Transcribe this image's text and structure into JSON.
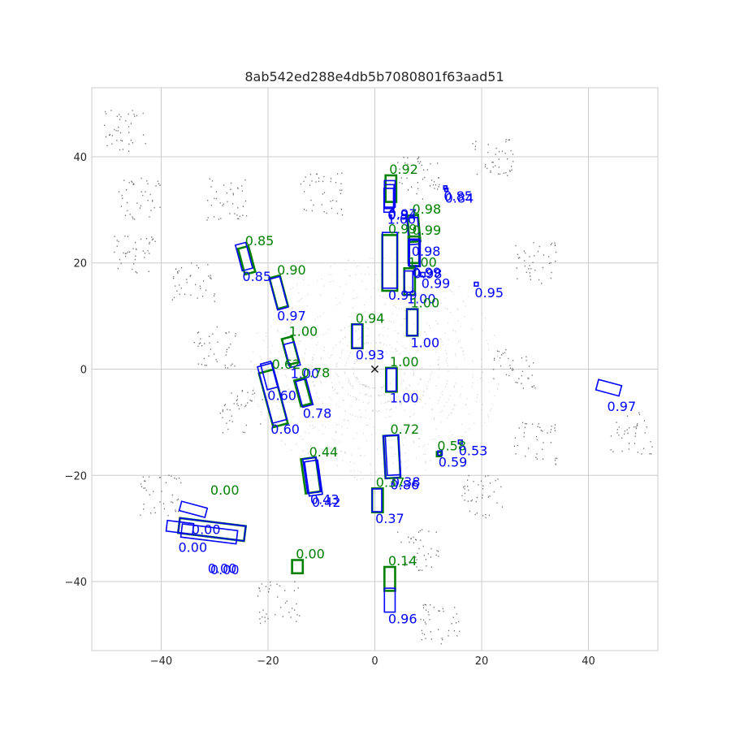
{
  "chart_data": {
    "type": "scatter",
    "title": "8ab542ed288e4db5b7080801f63aad51",
    "xlim": [
      -53,
      53
    ],
    "ylim": [
      -53,
      53
    ],
    "xticks": [
      -40,
      -20,
      0,
      20,
      40
    ],
    "yticks": [
      -40,
      -20,
      0,
      20,
      40
    ],
    "grid": true,
    "ego_marker": {
      "x": 0,
      "y": 0,
      "symbol": "×"
    },
    "colors": {
      "gt": "#008000",
      "pred": "#0000ff",
      "points": "#808080",
      "grid": "#cccccc"
    },
    "boxes": [
      {
        "kind": "gt",
        "cx": 3,
        "cy": 34,
        "w": 2,
        "l": 5,
        "yaw": 0,
        "score": "0.92"
      },
      {
        "kind": "pred",
        "cx": 2.8,
        "cy": 33,
        "w": 2,
        "l": 5,
        "yaw": 0,
        "score": "0.97"
      },
      {
        "kind": "pred",
        "cx": 2.7,
        "cy": 32.5,
        "w": 1.8,
        "l": 4.5,
        "yaw": 0,
        "score": "0.94"
      },
      {
        "kind": "pred",
        "cx": 2.6,
        "cy": 31.8,
        "w": 1.8,
        "l": 4.5,
        "yaw": 0,
        "score": "1.00"
      },
      {
        "kind": "pred",
        "cx": 13.2,
        "cy": 34.2,
        "w": 0.6,
        "l": 0.6,
        "yaw": 0,
        "score": "0.85"
      },
      {
        "kind": "pred",
        "cx": 13.4,
        "cy": 33.8,
        "w": 0.6,
        "l": 0.6,
        "yaw": 0,
        "score": "0.84"
      },
      {
        "kind": "gt",
        "cx": 7.3,
        "cy": 26.5,
        "w": 2,
        "l": 5,
        "yaw": 5,
        "score": "0.98"
      },
      {
        "kind": "pred",
        "cx": 7.2,
        "cy": 26,
        "w": 2,
        "l": 5,
        "yaw": 5,
        "score": "0.98"
      },
      {
        "kind": "gt",
        "cx": 7.3,
        "cy": 22.5,
        "w": 2,
        "l": 5,
        "yaw": 0,
        "score": "0.99"
      },
      {
        "kind": "pred",
        "cx": 7.3,
        "cy": 22,
        "w": 2,
        "l": 5,
        "yaw": 0,
        "score": "0.99"
      },
      {
        "kind": "pred",
        "cx": 7.5,
        "cy": 21.8,
        "w": 2,
        "l": 5,
        "yaw": 0,
        "score": "0.98"
      },
      {
        "kind": "gt",
        "cx": 2.8,
        "cy": 20,
        "w": 2.8,
        "l": 10.5,
        "yaw": 0,
        "score": "0.99"
      },
      {
        "kind": "pred",
        "cx": 2.8,
        "cy": 20.5,
        "w": 2.8,
        "l": 10.5,
        "yaw": 0,
        "score": "0.99"
      },
      {
        "kind": "gt",
        "cx": 6.5,
        "cy": 16.5,
        "w": 2,
        "l": 5,
        "yaw": 0,
        "score": "1.00"
      },
      {
        "kind": "pred",
        "cx": 6.3,
        "cy": 16.5,
        "w": 1.6,
        "l": 4,
        "yaw": 0,
        "score": "1.00"
      },
      {
        "kind": "pred",
        "cx": 9,
        "cy": 17.8,
        "w": 0.8,
        "l": 0.8,
        "yaw": 0,
        "score": "0.99"
      },
      {
        "kind": "pred",
        "cx": 19,
        "cy": 16,
        "w": 0.7,
        "l": 0.7,
        "yaw": 0,
        "score": "0.95"
      },
      {
        "kind": "gt",
        "cx": 7,
        "cy": 8.8,
        "w": 2,
        "l": 5,
        "yaw": 0,
        "score": "1.00"
      },
      {
        "kind": "pred",
        "cx": 7,
        "cy": 8.8,
        "w": 2,
        "l": 5,
        "yaw": 0,
        "score": "1.00"
      },
      {
        "kind": "gt",
        "cx": 3.1,
        "cy": -2,
        "w": 2,
        "l": 4.5,
        "yaw": 0,
        "score": "1.00"
      },
      {
        "kind": "pred",
        "cx": 3.1,
        "cy": -2,
        "w": 1.8,
        "l": 4.3,
        "yaw": 0,
        "score": "1.00"
      },
      {
        "kind": "gt",
        "cx": -3.3,
        "cy": 6.2,
        "w": 2,
        "l": 4.5,
        "yaw": 0,
        "score": "0.94"
      },
      {
        "kind": "pred",
        "cx": -3.3,
        "cy": 6.2,
        "w": 1.8,
        "l": 4.5,
        "yaw": 0,
        "score": "0.93"
      },
      {
        "kind": "gt",
        "cx": -24,
        "cy": 20.5,
        "w": 2,
        "l": 5,
        "yaw": 15,
        "score": "0.85"
      },
      {
        "kind": "pred",
        "cx": -24.5,
        "cy": 21.2,
        "w": 2,
        "l": 5,
        "yaw": 15,
        "score": "0.85"
      },
      {
        "kind": "gt",
        "cx": -18,
        "cy": 14.5,
        "w": 2,
        "l": 6,
        "yaw": 15,
        "score": "0.90"
      },
      {
        "kind": "pred",
        "cx": -18,
        "cy": 14.3,
        "w": 2,
        "l": 6,
        "yaw": 15,
        "score": "0.97"
      },
      {
        "kind": "gt",
        "cx": -15.8,
        "cy": 3.5,
        "w": 2,
        "l": 5,
        "yaw": 15,
        "score": "1.00"
      },
      {
        "kind": "pred",
        "cx": -15.5,
        "cy": 2.7,
        "w": 2,
        "l": 4.5,
        "yaw": 15,
        "score": "1.00"
      },
      {
        "kind": "gt",
        "cx": -19,
        "cy": -5.5,
        "w": 2.8,
        "l": 10.5,
        "yaw": 15,
        "score": "0.62"
      },
      {
        "kind": "pred",
        "cx": -19.2,
        "cy": -4.5,
        "w": 2.8,
        "l": 11,
        "yaw": 15,
        "score": "0.60"
      },
      {
        "kind": "pred",
        "cx": -19.8,
        "cy": -1.2,
        "w": 2,
        "l": 5,
        "yaw": 15,
        "score": "0.60"
      },
      {
        "kind": "gt",
        "cx": -13.5,
        "cy": -4.3,
        "w": 2,
        "l": 5,
        "yaw": 15,
        "score": "0.78"
      },
      {
        "kind": "pred",
        "cx": -13.2,
        "cy": -4.5,
        "w": 2,
        "l": 5,
        "yaw": 15,
        "score": "0.78"
      },
      {
        "kind": "gt",
        "cx": 3.2,
        "cy": -16.5,
        "w": 2.8,
        "l": 8,
        "yaw": 3,
        "score": "0.72"
      },
      {
        "kind": "pred",
        "cx": 3.2,
        "cy": -16.5,
        "w": 2.8,
        "l": 8,
        "yaw": 3,
        "score": "0.86"
      },
      {
        "kind": "pred",
        "cx": 3.4,
        "cy": -16.2,
        "w": 2.5,
        "l": 7.5,
        "yaw": 3,
        "score": "0.38"
      },
      {
        "kind": "gt",
        "cx": 12,
        "cy": -16,
        "w": 0.8,
        "l": 0.8,
        "yaw": 0,
        "score": "0.58"
      },
      {
        "kind": "pred",
        "cx": 12.2,
        "cy": -15.8,
        "w": 0.8,
        "l": 0.8,
        "yaw": 0,
        "score": "0.59"
      },
      {
        "kind": "pred",
        "cx": 16,
        "cy": -13.7,
        "w": 0.7,
        "l": 0.7,
        "yaw": 0,
        "score": "0.53"
      },
      {
        "kind": "pred",
        "cx": 43.8,
        "cy": -3.5,
        "w": 2,
        "l": 4.5,
        "yaw": 75,
        "score": "0.97"
      },
      {
        "kind": "gt",
        "cx": -12,
        "cy": -20,
        "w": 2.8,
        "l": 6.5,
        "yaw": 8,
        "score": "0.44"
      },
      {
        "kind": "pred",
        "cx": -11.8,
        "cy": -20,
        "w": 2.5,
        "l": 6.5,
        "yaw": 8,
        "score": "0.43"
      },
      {
        "kind": "pred",
        "cx": -11.5,
        "cy": -20.5,
        "w": 2.5,
        "l": 6.5,
        "yaw": 8,
        "score": "0.42"
      },
      {
        "kind": "gt",
        "cx": 0.5,
        "cy": -24.7,
        "w": 2,
        "l": 4.5,
        "yaw": 0,
        "score": "0.37"
      },
      {
        "kind": "pred",
        "cx": 0.4,
        "cy": -24.7,
        "w": 1.8,
        "l": 4.3,
        "yaw": 0,
        "score": "0.37"
      },
      {
        "kind": "gt",
        "cx": -30.5,
        "cy": -30.2,
        "w": 2.8,
        "l": 12.5,
        "yaw": 83,
        "score": "0.00"
      },
      {
        "kind": "pred",
        "cx": -30.5,
        "cy": -30.2,
        "w": 2.8,
        "l": 12.5,
        "yaw": 83,
        "score": "0.00"
      },
      {
        "kind": "pred",
        "cx": -31,
        "cy": -31,
        "w": 2.5,
        "l": 10.5,
        "yaw": 83,
        "score": "0.00"
      },
      {
        "kind": "pred",
        "cx": -34,
        "cy": -26.4,
        "w": 1.8,
        "l": 5,
        "yaw": 75,
        "score": "0.00"
      },
      {
        "kind": "pred",
        "cx": -36.5,
        "cy": -29.8,
        "w": 2,
        "l": 5,
        "yaw": 83,
        "score": "0.00"
      },
      {
        "kind": "gt",
        "cx": -14.5,
        "cy": -37.2,
        "w": 2,
        "l": 2.5,
        "yaw": 0,
        "score": "0.00"
      },
      {
        "kind": "gt",
        "cx": 2.8,
        "cy": -39.5,
        "w": 2,
        "l": 4.5,
        "yaw": 0,
        "score": "0.14"
      },
      {
        "kind": "pred",
        "cx": 2.8,
        "cy": -43.5,
        "w": 2,
        "l": 4.5,
        "yaw": 0,
        "score": "0.96"
      }
    ]
  }
}
